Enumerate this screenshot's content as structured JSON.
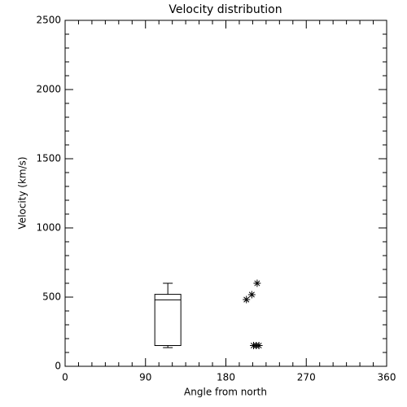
{
  "chart_data": {
    "type": "box",
    "title": "Velocity distribution",
    "xlabel": "Angle from north",
    "ylabel": "Velocity (km/s)",
    "xlim": [
      0,
      360
    ],
    "xticks": [
      0,
      90,
      180,
      270,
      360
    ],
    "ylim": [
      0,
      2500
    ],
    "yticks": [
      0,
      500,
      1000,
      1500,
      2000,
      2500
    ],
    "minor_ticks": {
      "x": 6,
      "y": 5
    },
    "color": "#000000",
    "boxes": [
      {
        "x": 115,
        "min": 135,
        "q1": 150,
        "median": 480,
        "q3": 520,
        "max": 600
      }
    ],
    "scatter": {
      "marker": "asterisk",
      "x": [
        203,
        209,
        215,
        211,
        214,
        217
      ],
      "y": [
        482,
        518,
        600,
        150,
        150,
        150
      ]
    }
  }
}
